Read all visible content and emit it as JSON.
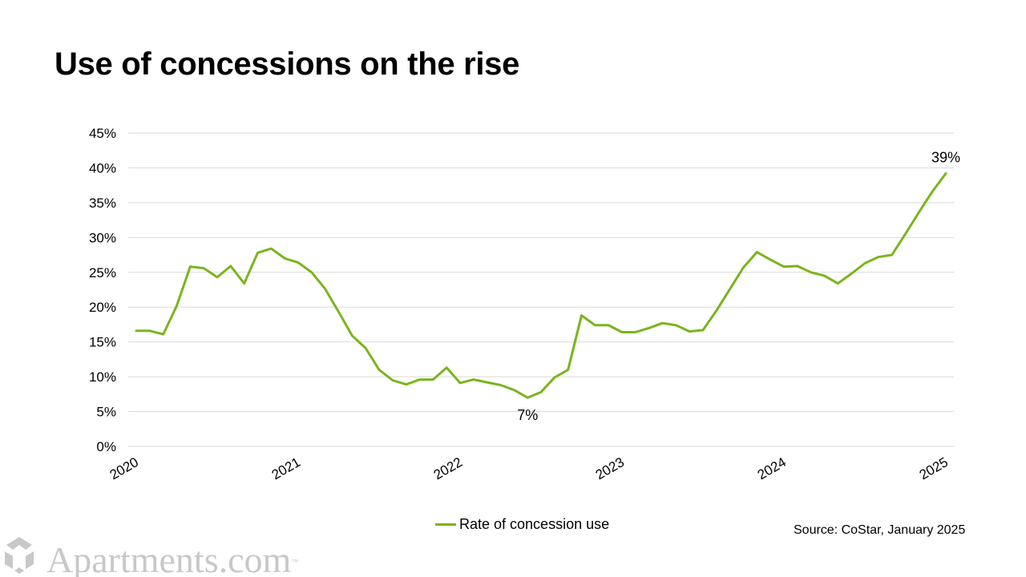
{
  "title": "Use of concessions on the rise",
  "source": "Source: CoStar, January 2025",
  "logo": {
    "text": "Apartments.com",
    "tm": "™"
  },
  "colors": {
    "line": "#7ab51d",
    "grid": "#d9d9d9",
    "logo": "#c8c8c8"
  },
  "chart_data": {
    "type": "line",
    "title": "Use of concessions on the rise",
    "xlabel": "",
    "ylabel": "",
    "ylim": [
      0,
      45
    ],
    "y_ticks": [
      "0%",
      "5%",
      "10%",
      "15%",
      "20%",
      "25%",
      "30%",
      "35%",
      "40%",
      "45%"
    ],
    "x_ticks": [
      "2020",
      "2021",
      "2022",
      "2023",
      "2024",
      "2025"
    ],
    "xlim": [
      2020.0,
      2025.0
    ],
    "grid": "horizontal",
    "legend": "bottom-center",
    "series": [
      {
        "name": "Rate of concession use",
        "color": "#7ab51d",
        "x": [
          2020.0,
          2020.083,
          2020.167,
          2020.25,
          2020.333,
          2020.417,
          2020.5,
          2020.583,
          2020.667,
          2020.75,
          2020.833,
          2020.917,
          2021.0,
          2021.083,
          2021.167,
          2021.25,
          2021.333,
          2021.417,
          2021.5,
          2021.583,
          2021.667,
          2021.75,
          2021.833,
          2021.917,
          2022.0,
          2022.083,
          2022.167,
          2022.25,
          2022.333,
          2022.417,
          2022.5,
          2022.583,
          2022.667,
          2022.75,
          2022.833,
          2022.917,
          2023.0,
          2023.083,
          2023.167,
          2023.25,
          2023.333,
          2023.417,
          2023.5,
          2023.583,
          2023.667,
          2023.75,
          2023.833,
          2023.917,
          2024.0,
          2024.083,
          2024.167,
          2024.25,
          2024.333,
          2024.417,
          2024.5,
          2024.583,
          2024.667,
          2024.75,
          2024.833,
          2024.917,
          2025.0
        ],
        "values": [
          16.6,
          16.6,
          16.1,
          20.2,
          25.8,
          25.6,
          24.3,
          25.9,
          23.4,
          27.8,
          28.4,
          27.0,
          26.4,
          25.0,
          22.6,
          19.3,
          15.9,
          14.1,
          11.0,
          9.5,
          8.9,
          9.6,
          9.6,
          11.3,
          9.1,
          9.6,
          9.2,
          8.8,
          8.1,
          7.0,
          7.8,
          9.9,
          11.0,
          18.8,
          17.4,
          17.4,
          16.4,
          16.4,
          17.0,
          17.7,
          17.4,
          16.5,
          16.7,
          19.5,
          22.6,
          25.7,
          27.9,
          26.8,
          25.8,
          25.9,
          25.0,
          24.5,
          23.4,
          24.8,
          26.3,
          27.2,
          27.5,
          30.5,
          33.6,
          36.6,
          39.2
        ]
      }
    ],
    "annotations": [
      {
        "label": "39%",
        "x": 2025.0,
        "y": 39.2
      },
      {
        "label": "7%",
        "x": 2022.417,
        "y": 7.0
      }
    ]
  }
}
